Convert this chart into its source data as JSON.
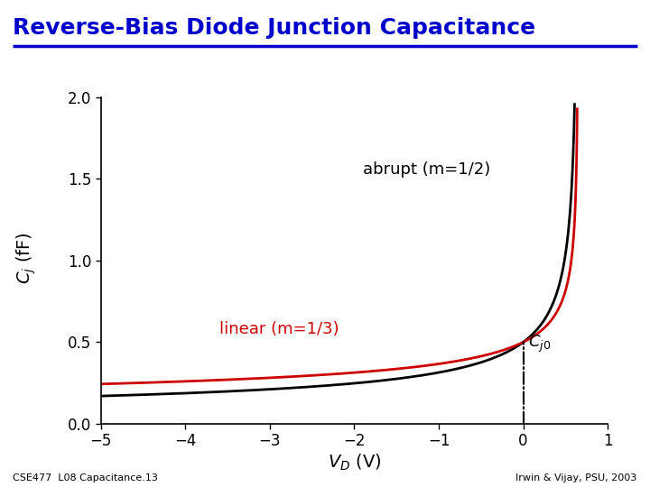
{
  "title": "Reverse-Bias Diode Junction Capacitance",
  "title_color": "#0000CC",
  "title_fontsize": 18,
  "xlim": [
    -5,
    1
  ],
  "ylim": [
    0,
    2
  ],
  "xticks": [
    -5,
    -4,
    -3,
    -2,
    -1,
    0,
    1
  ],
  "yticks": [
    0,
    0.5,
    1,
    1.5,
    2
  ],
  "Cj0": 0.5,
  "phi": 0.65,
  "m_abrupt": 0.5,
  "m_linear": 0.3333,
  "abrupt_color": "#000000",
  "linear_color": "#CC0000",
  "abrupt_label": "abrupt (m=1/2)",
  "linear_label": "linear (m=1/3)",
  "vline_x": 0,
  "bg_color": "#FFFFFF",
  "plot_bg_color": "#FFFFFF",
  "footer_left": "CSE477  L08 Capacitance.13",
  "footer_right": "Irwin & Vijay, PSU, 2003",
  "linewidth": 2.0,
  "tick_fontsize": 12,
  "label_fontsize": 14,
  "annotation_fontsize": 13
}
